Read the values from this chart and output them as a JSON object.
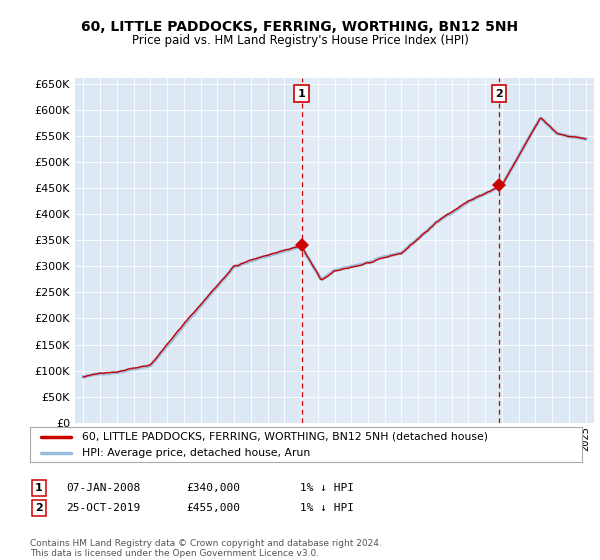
{
  "title": "60, LITTLE PADDOCKS, FERRING, WORTHING, BN12 5NH",
  "subtitle": "Price paid vs. HM Land Registry's House Price Index (HPI)",
  "ylim": [
    0,
    660000
  ],
  "yticks": [
    0,
    50000,
    100000,
    150000,
    200000,
    250000,
    300000,
    350000,
    400000,
    450000,
    500000,
    550000,
    600000,
    650000
  ],
  "legend_line1": "60, LITTLE PADDOCKS, FERRING, WORTHING, BN12 5NH (detached house)",
  "legend_line2": "HPI: Average price, detached house, Arun",
  "annotation1_date": "07-JAN-2008",
  "annotation1_price": "£340,000",
  "annotation1_hpi": "1% ↓ HPI",
  "annotation2_date": "25-OCT-2019",
  "annotation2_price": "£455,000",
  "annotation2_hpi": "1% ↓ HPI",
  "footer": "Contains HM Land Registry data © Crown copyright and database right 2024.\nThis data is licensed under the Open Government Licence v3.0.",
  "line_color_red": "#cc0000",
  "line_color_blue": "#99bbdd",
  "annotation_color": "#cc0000",
  "background_color": "#ffffff",
  "chart_bg_color": "#dce9f5",
  "grid_color": "#ffffff",
  "sale1_x": 2008.03,
  "sale1_y": 340000,
  "sale2_x": 2019.81,
  "sale2_y": 455000,
  "xlim_left": 1994.5,
  "xlim_right": 2025.5
}
